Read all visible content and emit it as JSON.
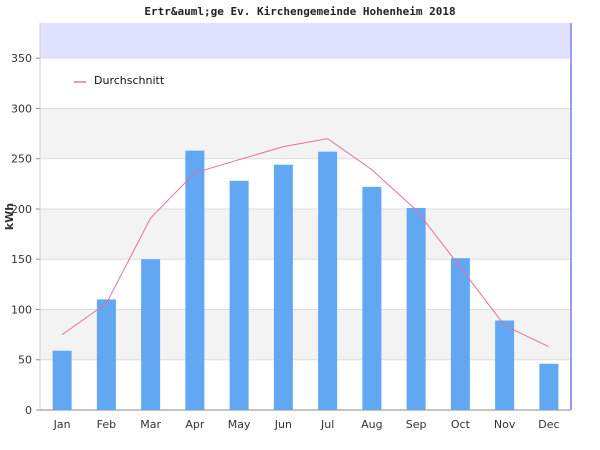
{
  "chart_data": {
    "type": "bar",
    "title": "Ertr&auml;ge Ev. Kirchengemeinde Hohenheim 2018",
    "ylabel": "kWh",
    "xlabel": "",
    "ylim": [
      0,
      385
    ],
    "yticks": [
      0,
      50,
      100,
      150,
      200,
      250,
      300,
      350
    ],
    "grid": true,
    "legend_position": "top-left",
    "categories": [
      "Jan",
      "Feb",
      "Mar",
      "Apr",
      "May",
      "Jun",
      "Jul",
      "Aug",
      "Sep",
      "Oct",
      "Nov",
      "Dec"
    ],
    "series": [
      {
        "kind": "bar",
        "values": [
          59,
          110,
          150,
          258,
          228,
          244,
          257,
          222,
          201,
          151,
          89,
          46
        ]
      },
      {
        "kind": "line",
        "name": "Durchschnitt",
        "values": [
          75,
          106,
          191,
          236,
          249,
          262,
          270,
          239,
          199,
          142,
          84,
          63
        ]
      }
    ],
    "colors": {
      "bar": "#62a7f2",
      "line": "#e56fa3",
      "band": "#f3f3f3",
      "top_band": "#e0e0ff",
      "axis_right": "#9999ff"
    }
  }
}
